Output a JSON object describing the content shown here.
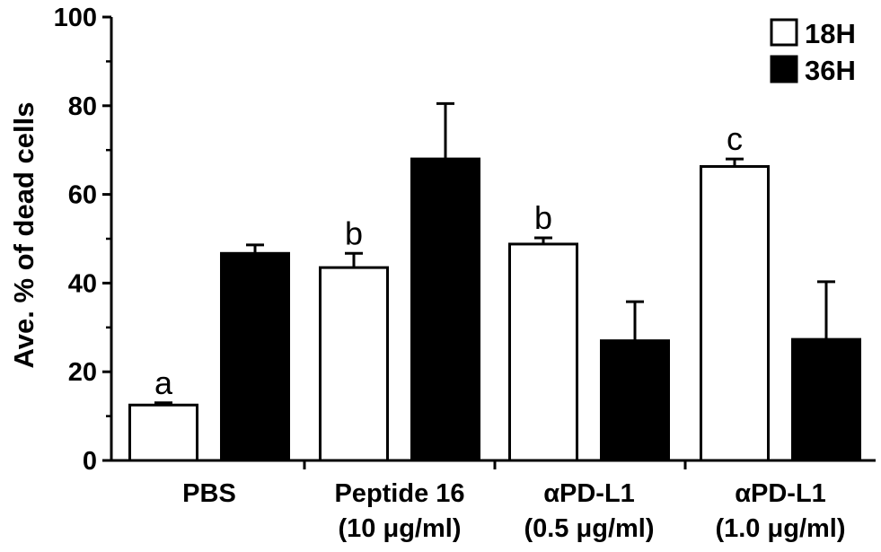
{
  "chart_data": {
    "type": "bar",
    "ylabel": "Ave. % of dead cells",
    "ylim": [
      0,
      100
    ],
    "yticks": [
      "0",
      "20",
      "40",
      "60",
      "80",
      "100"
    ],
    "categories": [
      {
        "line1": "PBS",
        "line2": ""
      },
      {
        "line1": "Peptide 16",
        "line2": "(10 μg/ml)"
      },
      {
        "line1": "αPD-L1",
        "line2": "(0.5 μg/ml)"
      },
      {
        "line1": "αPD-L1",
        "line2": "(1.0 μg/ml)"
      }
    ],
    "series": [
      {
        "name": "18H",
        "fill": "#ffffff",
        "values": [
          12.5,
          43.5,
          48.8,
          66.3
        ],
        "errors": [
          0.5,
          3.2,
          1.4,
          1.7
        ],
        "sig_labels": [
          "a",
          "b",
          "b",
          "c"
        ]
      },
      {
        "name": "36H",
        "fill": "#000000",
        "values": [
          46.7,
          68.0,
          27.0,
          27.3
        ],
        "errors": [
          1.9,
          12.5,
          8.8,
          13.0
        ]
      }
    ],
    "legend_position": "top-right",
    "grid": false
  }
}
